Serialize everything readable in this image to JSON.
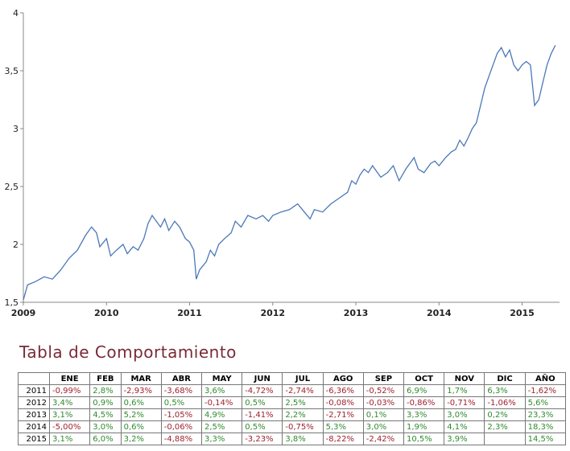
{
  "chart_data": {
    "type": "line",
    "color": "#4a78b8",
    "x": [
      2009.0,
      2009.05,
      2009.15,
      2009.25,
      2009.35,
      2009.45,
      2009.55,
      2009.65,
      2009.75,
      2009.82,
      2009.88,
      2009.92,
      2010.0,
      2010.05,
      2010.12,
      2010.2,
      2010.25,
      2010.32,
      2010.38,
      2010.45,
      2010.5,
      2010.55,
      2010.6,
      2010.65,
      2010.7,
      2010.75,
      2010.82,
      2010.88,
      2010.95,
      2011.0,
      2011.05,
      2011.08,
      2011.12,
      2011.2,
      2011.25,
      2011.3,
      2011.35,
      2011.42,
      2011.5,
      2011.55,
      2011.62,
      2011.7,
      2011.8,
      2011.88,
      2011.95,
      2012.0,
      2012.1,
      2012.2,
      2012.3,
      2012.38,
      2012.45,
      2012.5,
      2012.6,
      2012.7,
      2012.8,
      2012.9,
      2012.95,
      2013.0,
      2013.05,
      2013.1,
      2013.15,
      2013.2,
      2013.3,
      2013.38,
      2013.45,
      2013.52,
      2013.6,
      2013.7,
      2013.75,
      2013.82,
      2013.9,
      2013.95,
      2014.0,
      2014.08,
      2014.15,
      2014.2,
      2014.25,
      2014.3,
      2014.35,
      2014.4,
      2014.45,
      2014.5,
      2014.55,
      2014.6,
      2014.65,
      2014.7,
      2014.75,
      2014.8,
      2014.85,
      2014.9,
      2014.95,
      2015.0,
      2015.05,
      2015.1,
      2015.15,
      2015.2,
      2015.25,
      2015.3,
      2015.35,
      2015.4
    ],
    "values": [
      1.52,
      1.65,
      1.68,
      1.72,
      1.7,
      1.78,
      1.88,
      1.95,
      2.08,
      2.15,
      2.1,
      1.98,
      2.05,
      1.9,
      1.95,
      2.0,
      1.92,
      1.98,
      1.95,
      2.05,
      2.18,
      2.25,
      2.2,
      2.15,
      2.22,
      2.12,
      2.2,
      2.15,
      2.05,
      2.02,
      1.95,
      1.7,
      1.78,
      1.85,
      1.95,
      1.9,
      2.0,
      2.05,
      2.1,
      2.2,
      2.15,
      2.25,
      2.22,
      2.25,
      2.2,
      2.25,
      2.28,
      2.3,
      2.35,
      2.28,
      2.22,
      2.3,
      2.28,
      2.35,
      2.4,
      2.45,
      2.55,
      2.52,
      2.6,
      2.65,
      2.62,
      2.68,
      2.58,
      2.62,
      2.68,
      2.55,
      2.65,
      2.75,
      2.65,
      2.62,
      2.7,
      2.72,
      2.68,
      2.75,
      2.8,
      2.82,
      2.9,
      2.85,
      2.92,
      3.0,
      3.05,
      3.2,
      3.35,
      3.45,
      3.55,
      3.65,
      3.7,
      3.62,
      3.68,
      3.55,
      3.5,
      3.55,
      3.58,
      3.55,
      3.2,
      3.25,
      3.4,
      3.55,
      3.65,
      3.72
    ],
    "xlim": [
      2009,
      2015.45
    ],
    "xticks": [
      2009,
      2010,
      2011,
      2012,
      2013,
      2014,
      2015
    ],
    "ylim": [
      1.5,
      4
    ],
    "yticks": [
      {
        "value": 1.5,
        "label": "1,5"
      },
      2,
      {
        "value": 2.5,
        "label": "2,5"
      },
      3,
      {
        "value": 3.5,
        "label": "3,5"
      },
      4
    ]
  },
  "table": {
    "title": "Tabla de Comportamiento",
    "header": [
      "ENE",
      "FEB",
      "MAR",
      "ABR",
      "MAY",
      "JUN",
      "JUL",
      "AGO",
      "SEP",
      "OCT",
      "NOV",
      "DIC",
      "AÑO"
    ],
    "rows": [
      [
        "2011",
        "-0,99%",
        "2,8%",
        "-2,93%",
        "-3,68%",
        "3,6%",
        "-4,72%",
        "-2,74%",
        "-6,36%",
        "-0,52%",
        "6,9%",
        "1,7%",
        "6,3%",
        "-1,62%"
      ],
      [
        "2012",
        "3,4%",
        "0,9%",
        "0,6%",
        "0,5%",
        "-0,14%",
        "0,5%",
        "2,5%",
        "-0,08%",
        "-0,03%",
        "-0,86%",
        "-0,71%",
        "-1,06%",
        "5,6%"
      ],
      [
        "2013",
        "3,1%",
        "4,5%",
        "5,2%",
        "-1,05%",
        "4,9%",
        "-1,41%",
        "2,2%",
        "-2,71%",
        "0,1%",
        "3,3%",
        "3,0%",
        "0,2%",
        "23,3%"
      ],
      [
        "2014",
        "-5,00%",
        "3,0%",
        "0,6%",
        "-0,06%",
        "2,5%",
        "0,5%",
        "-0,75%",
        "5,3%",
        "3,0%",
        "1,9%",
        "4,1%",
        "2,3%",
        "18,3%"
      ],
      [
        "2015",
        "3,1%",
        "6,0%",
        "3,2%",
        "-4,88%",
        "3,3%",
        "-3,23%",
        "3,8%",
        "-8,22%",
        "-2,42%",
        "10,5%",
        "3,9%",
        null,
        "14,5%"
      ]
    ]
  }
}
